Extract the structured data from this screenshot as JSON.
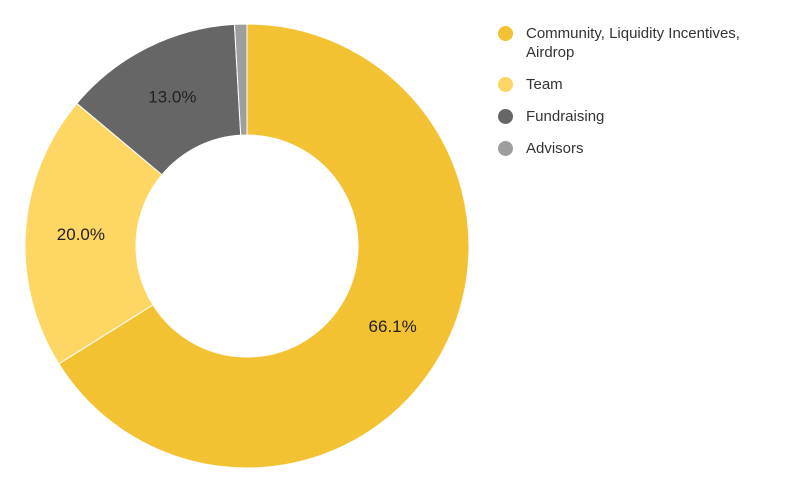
{
  "chart_data": {
    "type": "pie",
    "donut": true,
    "categories": [
      "Community, Liquidity Incentives, Airdrop",
      "Team",
      "Fundraising",
      "Advisors"
    ],
    "values": [
      66.1,
      20.0,
      13.0,
      0.9
    ],
    "labels": [
      "66.1%",
      "20.0%",
      "13.0%",
      ""
    ],
    "colors": [
      "#F2C232",
      "#FDD663",
      "#666666",
      "#9E9E9E"
    ],
    "legend_position": "right",
    "start": "top",
    "direction": "clockwise"
  }
}
